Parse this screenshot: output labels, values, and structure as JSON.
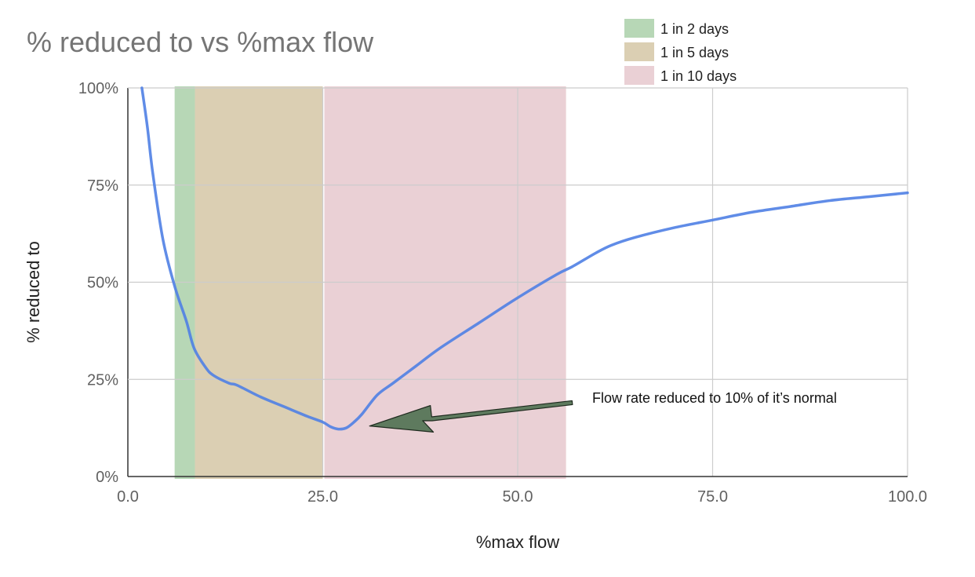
{
  "chart_data": {
    "type": "line",
    "title": "% reduced to vs %max flow",
    "xlabel": "%max flow",
    "ylabel": "% reduced to",
    "xlim": [
      0,
      100
    ],
    "ylim": [
      0,
      100
    ],
    "x_ticks": [
      "0.0",
      "25.0",
      "50.0",
      "75.0",
      "100.0"
    ],
    "x_tick_values": [
      0,
      25,
      50,
      75,
      100
    ],
    "y_ticks": [
      "0%",
      "25%",
      "50%",
      "75%",
      "100%"
    ],
    "y_tick_values": [
      0,
      25,
      50,
      75,
      100
    ],
    "grid": true,
    "legend_position": "top-right",
    "series": [
      {
        "color": "#4f7fe4",
        "points": [
          [
            1.8,
            100
          ],
          [
            2.5,
            90
          ],
          [
            3.2,
            78
          ],
          [
            4.5,
            61
          ],
          [
            6.0,
            49
          ],
          [
            7.5,
            40
          ],
          [
            8.5,
            33
          ],
          [
            10.0,
            28
          ],
          [
            11.0,
            26
          ],
          [
            13.0,
            24
          ],
          [
            14.0,
            23.5
          ],
          [
            17.0,
            20.5
          ],
          [
            20.0,
            18.0
          ],
          [
            23.0,
            15.5
          ],
          [
            25.0,
            14.0
          ],
          [
            26.0,
            12.8
          ],
          [
            27.0,
            12.2
          ],
          [
            28.0,
            12.5
          ],
          [
            29.0,
            14
          ],
          [
            30.0,
            16
          ],
          [
            32.0,
            21
          ],
          [
            34.0,
            24
          ],
          [
            37.0,
            28.5
          ],
          [
            40.0,
            33
          ],
          [
            45.0,
            39.5
          ],
          [
            50.0,
            46
          ],
          [
            55.0,
            52
          ],
          [
            57.0,
            54
          ],
          [
            60.0,
            57.5
          ],
          [
            62.0,
            59.5
          ],
          [
            65.0,
            61.5
          ],
          [
            70.0,
            64
          ],
          [
            75.0,
            66
          ],
          [
            80.0,
            68
          ],
          [
            85.0,
            69.5
          ],
          [
            90.0,
            71
          ],
          [
            95.0,
            72
          ],
          [
            100.0,
            73
          ]
        ]
      }
    ],
    "bands": [
      {
        "label": "1 in 2 days",
        "x_start": 6.0,
        "x_end": 8.6,
        "color": "#b7d7b6"
      },
      {
        "label": "1 in 5 days",
        "x_start": 8.6,
        "x_end": 25.0,
        "color": "#dbcfb3"
      },
      {
        "label": "1 in 10 days",
        "x_start": 25.2,
        "x_end": 56.2,
        "color": "#ead0d5"
      }
    ],
    "annotation": {
      "text": "Flow rate reduced to 10% of it’s normal",
      "arrow_tip": [
        31.0,
        13.0
      ],
      "arrow_tail": [
        57.0,
        19.0
      ],
      "arrow_color": "#5e7a5e"
    }
  }
}
